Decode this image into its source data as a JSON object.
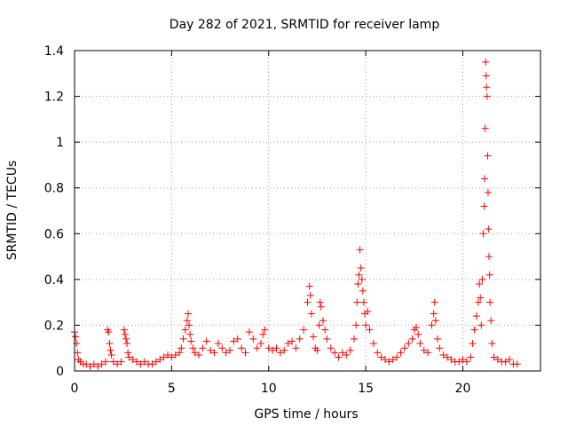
{
  "chart_data": {
    "type": "scatter",
    "title": "Day 282 of 2021, SRMTID for receiver lamp",
    "xlabel": "GPS time / hours",
    "ylabel": "SRMTID / TECUs",
    "xlim": [
      0,
      24
    ],
    "ylim": [
      0,
      1.4
    ],
    "xticks": [
      0,
      5,
      10,
      15,
      20
    ],
    "yticks": [
      0,
      0.2,
      0.4,
      0.6,
      0.8,
      1.0,
      1.2,
      1.4
    ],
    "ytick_labels": [
      "0",
      "0.2",
      "0.4",
      "0.6",
      "0.8",
      "1",
      "1.2",
      "1.4"
    ],
    "grid": true,
    "marker": "+",
    "color": "#ff0000",
    "series": [
      {
        "name": "SRMTID",
        "x": [
          0.0,
          0.05,
          0.1,
          0.15,
          0.2,
          0.3,
          0.45,
          0.6,
          0.8,
          1.0,
          1.2,
          1.4,
          1.6,
          1.7,
          1.75,
          1.8,
          1.85,
          1.9,
          2.0,
          2.2,
          2.4,
          2.55,
          2.6,
          2.65,
          2.7,
          2.75,
          2.8,
          3.0,
          3.2,
          3.4,
          3.6,
          3.8,
          4.0,
          4.2,
          4.4,
          4.6,
          4.8,
          5.0,
          5.2,
          5.4,
          5.5,
          5.6,
          5.7,
          5.8,
          5.85,
          5.9,
          5.95,
          6.0,
          6.1,
          6.2,
          6.4,
          6.6,
          6.8,
          7.0,
          7.2,
          7.4,
          7.6,
          7.8,
          8.0,
          8.2,
          8.4,
          8.6,
          8.8,
          9.0,
          9.2,
          9.4,
          9.6,
          9.7,
          9.8,
          10.0,
          10.2,
          10.4,
          10.6,
          10.8,
          11.0,
          11.2,
          11.4,
          11.6,
          11.8,
          12.0,
          12.1,
          12.15,
          12.2,
          12.3,
          12.4,
          12.5,
          12.6,
          12.65,
          12.7,
          12.8,
          12.9,
          13.0,
          13.2,
          13.4,
          13.6,
          13.8,
          14.0,
          14.2,
          14.4,
          14.5,
          14.55,
          14.6,
          14.65,
          14.7,
          14.75,
          14.8,
          14.85,
          14.9,
          14.95,
          15.0,
          15.1,
          15.2,
          15.4,
          15.6,
          15.8,
          16.0,
          16.2,
          16.4,
          16.6,
          16.8,
          17.0,
          17.2,
          17.4,
          17.5,
          17.6,
          17.7,
          17.8,
          18.0,
          18.2,
          18.4,
          18.5,
          18.55,
          18.6,
          18.7,
          18.8,
          19.0,
          19.2,
          19.4,
          19.6,
          19.8,
          20.0,
          20.2,
          20.4,
          20.5,
          20.6,
          20.7,
          20.8,
          20.85,
          20.9,
          20.95,
          21.0,
          21.05,
          21.1,
          21.12,
          21.15,
          21.18,
          21.2,
          21.22,
          21.25,
          21.28,
          21.3,
          21.32,
          21.35,
          21.38,
          21.4,
          21.45,
          21.5,
          21.6,
          21.8,
          22.0,
          22.2,
          22.4,
          22.6,
          22.8
        ],
        "y": [
          0.17,
          0.15,
          0.12,
          0.08,
          0.05,
          0.04,
          0.03,
          0.03,
          0.02,
          0.03,
          0.02,
          0.03,
          0.04,
          0.18,
          0.17,
          0.12,
          0.09,
          0.07,
          0.04,
          0.03,
          0.04,
          0.18,
          0.16,
          0.14,
          0.12,
          0.08,
          0.06,
          0.05,
          0.04,
          0.03,
          0.04,
          0.03,
          0.03,
          0.04,
          0.05,
          0.06,
          0.07,
          0.06,
          0.07,
          0.08,
          0.1,
          0.14,
          0.18,
          0.22,
          0.25,
          0.2,
          0.16,
          0.13,
          0.1,
          0.08,
          0.07,
          0.1,
          0.13,
          0.09,
          0.08,
          0.12,
          0.1,
          0.08,
          0.09,
          0.13,
          0.14,
          0.1,
          0.08,
          0.17,
          0.14,
          0.1,
          0.12,
          0.16,
          0.18,
          0.1,
          0.09,
          0.1,
          0.08,
          0.09,
          0.12,
          0.13,
          0.1,
          0.14,
          0.18,
          0.3,
          0.37,
          0.33,
          0.25,
          0.15,
          0.1,
          0.09,
          0.2,
          0.3,
          0.28,
          0.22,
          0.18,
          0.14,
          0.1,
          0.08,
          0.06,
          0.08,
          0.07,
          0.09,
          0.14,
          0.2,
          0.3,
          0.38,
          0.42,
          0.53,
          0.45,
          0.4,
          0.35,
          0.3,
          0.25,
          0.2,
          0.26,
          0.18,
          0.12,
          0.08,
          0.06,
          0.05,
          0.04,
          0.05,
          0.06,
          0.08,
          0.1,
          0.12,
          0.14,
          0.18,
          0.19,
          0.16,
          0.12,
          0.09,
          0.08,
          0.2,
          0.25,
          0.3,
          0.22,
          0.14,
          0.1,
          0.07,
          0.06,
          0.05,
          0.04,
          0.04,
          0.05,
          0.04,
          0.06,
          0.12,
          0.18,
          0.24,
          0.3,
          0.38,
          0.32,
          0.2,
          0.4,
          0.6,
          0.72,
          0.84,
          1.06,
          1.35,
          1.29,
          1.24,
          1.2,
          0.94,
          0.78,
          0.62,
          0.5,
          0.42,
          0.3,
          0.22,
          0.12,
          0.06,
          0.05,
          0.04,
          0.04,
          0.05,
          0.03,
          0.03
        ]
      }
    ]
  }
}
